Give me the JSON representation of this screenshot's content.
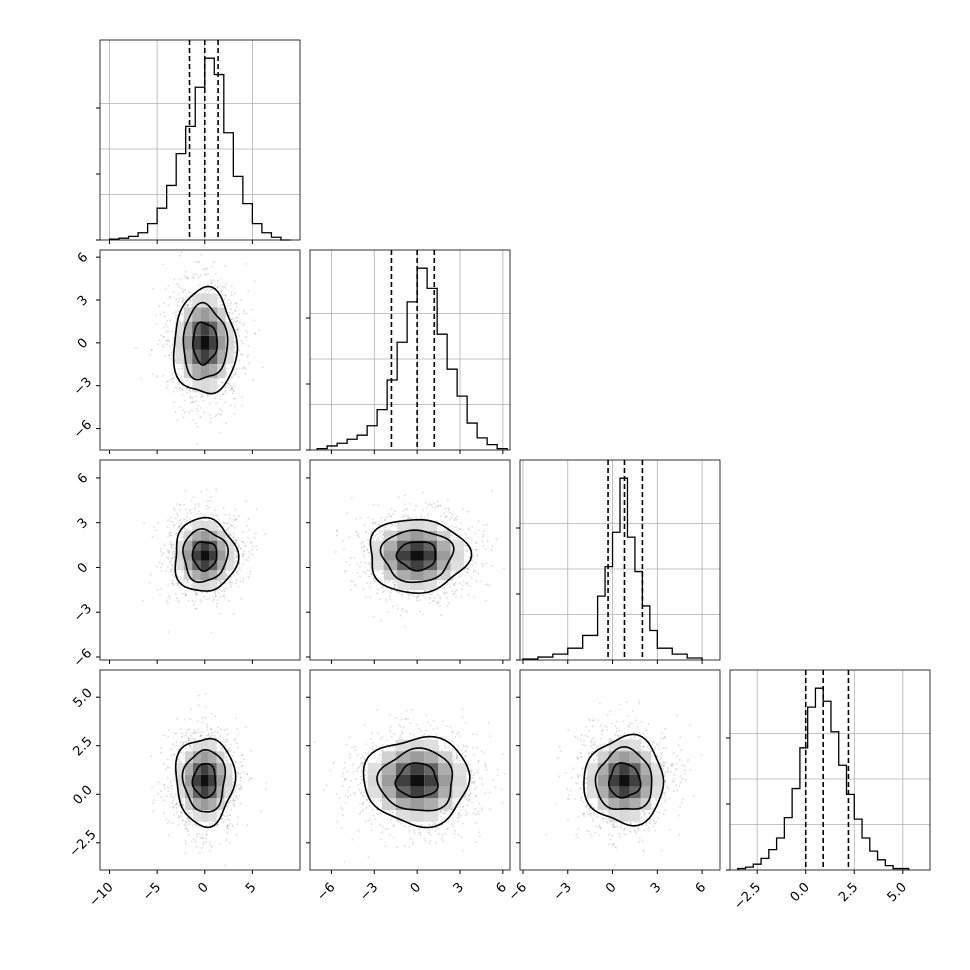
{
  "chart_data": {
    "type": "corner",
    "n_params": 4,
    "grid": true,
    "histogram_style": "step",
    "quantile_lines": "dashed",
    "contour_style": "black lines over grayscale 2d histogram with scatter points",
    "colors": {
      "line": "#000000",
      "grid": "#b0b0b0",
      "scatter": "#9a9a9a"
    },
    "params": [
      {
        "range": [
          -11,
          10
        ],
        "ticks": [
          -10,
          -5,
          0,
          5
        ],
        "tick_labels": [
          "−10",
          "−5",
          "0",
          "5"
        ],
        "quantiles": [
          -1.6,
          0.0,
          1.4
        ],
        "hist": {
          "edges": [
            -10,
            -9,
            -8,
            -7,
            -6,
            -5,
            -4,
            -3,
            -2,
            -1,
            0,
            1,
            2,
            3,
            4,
            5,
            6,
            7,
            8,
            9
          ],
          "counts": [
            1,
            2,
            4,
            8,
            18,
            35,
            60,
            95,
            125,
            168,
            200,
            182,
            118,
            70,
            40,
            18,
            8,
            3,
            0
          ]
        }
      },
      {
        "range": [
          -7.5,
          6.5
        ],
        "ticks": [
          -6,
          -3,
          0,
          3,
          6
        ],
        "tick_labels": [
          "−6",
          "−3",
          "0",
          "3",
          "6"
        ],
        "quantiles": [
          -1.8,
          0.0,
          1.2
        ],
        "hist": {
          "edges": [
            -7,
            -6.3,
            -5.6,
            -4.9,
            -4.2,
            -3.5,
            -2.8,
            -2.1,
            -1.4,
            -0.7,
            0,
            0.7,
            1.4,
            2.1,
            2.8,
            3.5,
            4.2,
            4.9,
            5.6,
            6.3
          ],
          "counts": [
            1,
            3,
            5,
            8,
            11,
            18,
            30,
            52,
            80,
            110,
            135,
            120,
            86,
            60,
            40,
            20,
            9,
            4,
            1
          ]
        }
      },
      {
        "range": [
          -6.2,
          7.2
        ],
        "ticks": [
          -6,
          -3,
          0,
          3,
          6
        ],
        "tick_labels": [
          "−6",
          "−3",
          "0",
          "3",
          "6"
        ],
        "quantiles": [
          -0.3,
          0.8,
          2.0
        ],
        "hist": {
          "edges": [
            -6,
            -5,
            -4,
            -3,
            -2,
            -1,
            -0.5,
            0,
            0.5,
            1,
            1.5,
            2,
            2.5,
            3,
            4,
            5,
            6
          ],
          "counts": [
            1,
            3,
            6,
            12,
            25,
            65,
            95,
            130,
            185,
            125,
            90,
            55,
            30,
            12,
            6,
            2
          ]
        }
      },
      {
        "range": [
          -3.9,
          6.4
        ],
        "ticks": [
          -2.5,
          0.0,
          2.5,
          5.0
        ],
        "tick_labels": [
          "−2.5",
          "0.0",
          "2.5",
          "5.0"
        ],
        "quantiles": [
          0.0,
          0.9,
          2.2
        ],
        "hist": {
          "edges": [
            -3.5,
            -3.1,
            -2.7,
            -2.3,
            -1.9,
            -1.5,
            -1.1,
            -0.7,
            -0.3,
            0.1,
            0.5,
            0.9,
            1.3,
            1.7,
            2.1,
            2.5,
            2.9,
            3.3,
            3.7,
            4.1,
            4.5,
            4.9,
            5.3
          ],
          "counts": [
            1,
            2,
            4,
            8,
            14,
            22,
            36,
            56,
            84,
            112,
            125,
            116,
            95,
            72,
            52,
            35,
            22,
            13,
            7,
            3,
            1,
            1
          ]
        }
      }
    ],
    "pairs": [
      {
        "x": 0,
        "y": 1,
        "center": [
          0.0,
          0.0
        ],
        "sigma": [
          1.6,
          1.8
        ]
      },
      {
        "x": 0,
        "y": 2,
        "center": [
          0.0,
          0.8
        ],
        "sigma": [
          1.6,
          1.2
        ]
      },
      {
        "x": 1,
        "y": 2,
        "center": [
          0.0,
          0.8
        ],
        "sigma": [
          1.7,
          1.2
        ]
      },
      {
        "x": 0,
        "y": 3,
        "center": [
          0.0,
          0.7
        ],
        "sigma": [
          1.5,
          1.1
        ]
      },
      {
        "x": 1,
        "y": 3,
        "center": [
          0.0,
          0.7
        ],
        "sigma": [
          1.8,
          1.1
        ]
      },
      {
        "x": 2,
        "y": 3,
        "center": [
          0.8,
          0.7
        ],
        "sigma": [
          1.3,
          1.1
        ]
      }
    ]
  }
}
